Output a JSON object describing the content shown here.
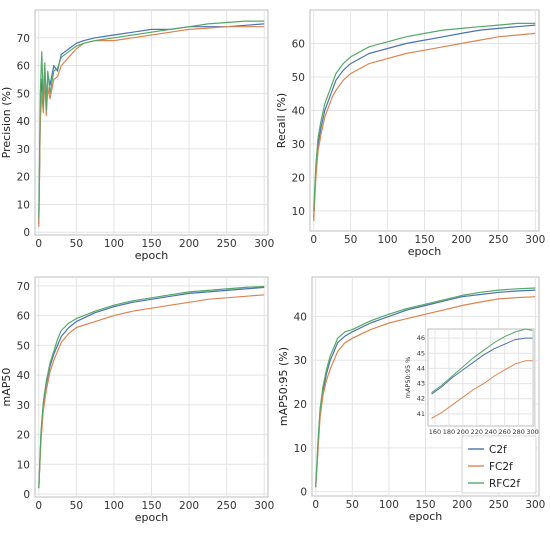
{
  "chart_data": [
    {
      "type": "line",
      "xlabel": "epoch",
      "ylabel": "Precision (%)",
      "xlim": [
        -5,
        305
      ],
      "ylim": [
        -1,
        80
      ],
      "xticks": [
        0,
        50,
        100,
        150,
        200,
        250,
        300
      ],
      "yticks": [
        0,
        10,
        20,
        30,
        40,
        50,
        60,
        70
      ],
      "grid": true,
      "series": [
        {
          "name": "C2f",
          "x": [
            0,
            2,
            4,
            6,
            8,
            10,
            12,
            15,
            20,
            25,
            30,
            40,
            50,
            60,
            75,
            100,
            125,
            150,
            175,
            200,
            225,
            250,
            275,
            300
          ],
          "y": [
            3,
            42,
            55,
            48,
            60,
            46,
            57,
            53,
            60,
            58,
            64,
            66,
            68,
            69,
            70,
            71,
            72,
            73,
            73,
            74,
            74,
            74,
            74.5,
            75
          ]
        },
        {
          "name": "FC2f",
          "x": [
            0,
            2,
            4,
            6,
            8,
            10,
            12,
            15,
            20,
            25,
            30,
            40,
            50,
            60,
            75,
            100,
            125,
            150,
            175,
            200,
            225,
            250,
            275,
            300
          ],
          "y": [
            2,
            40,
            50,
            43,
            55,
            42,
            52,
            48,
            55,
            56,
            60,
            63,
            66,
            68,
            69,
            69,
            70,
            71,
            72,
            73,
            73.5,
            74,
            74,
            74
          ]
        },
        {
          "name": "RFC2f",
          "x": [
            0,
            2,
            4,
            6,
            8,
            10,
            12,
            15,
            20,
            25,
            30,
            40,
            50,
            60,
            75,
            100,
            125,
            150,
            175,
            200,
            225,
            250,
            275,
            300
          ],
          "y": [
            5,
            50,
            65,
            45,
            61,
            44,
            58,
            50,
            58,
            59,
            63,
            65,
            67,
            68,
            69,
            70,
            71,
            72,
            73,
            74,
            75,
            75.5,
            76,
            76
          ]
        }
      ]
    },
    {
      "type": "line",
      "xlabel": "epoch",
      "ylabel": "Recall (%)",
      "xlim": [
        -5,
        305
      ],
      "ylim": [
        4,
        70
      ],
      "xticks": [
        0,
        50,
        100,
        150,
        200,
        250,
        300
      ],
      "yticks": [
        10,
        20,
        30,
        40,
        50,
        60
      ],
      "grid": true,
      "series": [
        {
          "name": "C2f",
          "x": [
            0,
            3,
            6,
            10,
            15,
            20,
            25,
            30,
            40,
            50,
            75,
            100,
            125,
            150,
            175,
            200,
            225,
            250,
            275,
            300
          ],
          "y": [
            8,
            22,
            30,
            35,
            40,
            43,
            46,
            49,
            52,
            54,
            57,
            58.5,
            60,
            61,
            62,
            63,
            64,
            64.5,
            65,
            65.5
          ]
        },
        {
          "name": "FC2f",
          "x": [
            0,
            3,
            6,
            10,
            15,
            20,
            25,
            30,
            40,
            50,
            75,
            100,
            125,
            150,
            175,
            200,
            225,
            250,
            275,
            300
          ],
          "y": [
            7,
            20,
            28,
            33,
            38,
            41,
            44,
            46,
            49,
            51,
            54,
            55.5,
            57,
            58,
            59,
            60,
            61,
            62,
            62.5,
            63
          ]
        },
        {
          "name": "RFC2f",
          "x": [
            0,
            3,
            6,
            10,
            15,
            20,
            25,
            30,
            40,
            50,
            75,
            100,
            125,
            150,
            175,
            200,
            225,
            250,
            275,
            300
          ],
          "y": [
            10,
            24,
            32,
            37,
            42,
            45,
            48,
            51,
            54,
            56,
            59,
            60.5,
            62,
            63,
            64,
            64.5,
            65,
            65.5,
            66,
            66
          ]
        }
      ]
    },
    {
      "type": "line",
      "xlabel": "epoch",
      "ylabel": "mAP50",
      "xlim": [
        -5,
        305
      ],
      "ylim": [
        -1,
        73
      ],
      "xticks": [
        0,
        50,
        100,
        150,
        200,
        250,
        300
      ],
      "yticks": [
        0,
        10,
        20,
        30,
        40,
        50,
        60,
        70
      ],
      "grid": true,
      "series": [
        {
          "name": "C2f",
          "x": [
            0,
            3,
            6,
            10,
            15,
            20,
            25,
            30,
            40,
            50,
            75,
            100,
            125,
            150,
            175,
            200,
            225,
            250,
            275,
            300
          ],
          "y": [
            2,
            20,
            30,
            37,
            43,
            47,
            50,
            53,
            56,
            58,
            61,
            63,
            64.5,
            65.5,
            66.5,
            67.5,
            68,
            68.5,
            69,
            69.5
          ]
        },
        {
          "name": "FC2f",
          "x": [
            0,
            3,
            6,
            10,
            15,
            20,
            25,
            30,
            40,
            50,
            75,
            100,
            125,
            150,
            175,
            200,
            225,
            250,
            275,
            300
          ],
          "y": [
            2,
            18,
            28,
            35,
            41,
            45,
            48,
            51,
            54,
            56,
            58,
            60,
            61.5,
            62.5,
            63.5,
            64.5,
            65.5,
            66,
            66.5,
            67
          ]
        },
        {
          "name": "RFC2f",
          "x": [
            0,
            3,
            6,
            10,
            15,
            20,
            25,
            30,
            40,
            50,
            75,
            100,
            125,
            150,
            175,
            200,
            225,
            250,
            275,
            300
          ],
          "y": [
            2,
            21,
            31,
            38,
            44,
            48,
            52,
            55,
            57.5,
            59,
            61.5,
            63.5,
            65,
            66,
            67,
            68,
            68.5,
            69,
            69.5,
            69.8
          ]
        }
      ]
    },
    {
      "type": "line",
      "xlabel": "epoch",
      "ylabel": "mAP50:95 (%)",
      "xlim": [
        -5,
        305
      ],
      "ylim": [
        -1,
        49
      ],
      "xticks": [
        0,
        50,
        100,
        150,
        200,
        250,
        300
      ],
      "yticks": [
        0,
        10,
        20,
        30,
        40
      ],
      "grid": true,
      "legend": "bottom-right",
      "series": [
        {
          "name": "C2f",
          "x": [
            0,
            3,
            6,
            10,
            15,
            20,
            25,
            30,
            40,
            50,
            75,
            100,
            125,
            150,
            175,
            200,
            225,
            250,
            275,
            300
          ],
          "y": [
            1,
            10,
            18,
            23,
            27,
            30,
            32,
            34,
            35.5,
            36.5,
            38.5,
            40,
            41.5,
            42.5,
            43.5,
            44.5,
            45,
            45.5,
            45.8,
            46
          ]
        },
        {
          "name": "FC2f",
          "x": [
            0,
            3,
            6,
            10,
            15,
            20,
            25,
            30,
            40,
            50,
            75,
            100,
            125,
            150,
            175,
            200,
            225,
            250,
            275,
            300
          ],
          "y": [
            1,
            9,
            17,
            22,
            25.5,
            28,
            30,
            32,
            34,
            35,
            37,
            38.5,
            39.5,
            40.5,
            41.5,
            42.5,
            43.3,
            44,
            44.3,
            44.5
          ]
        },
        {
          "name": "RFC2f",
          "x": [
            0,
            3,
            6,
            10,
            15,
            20,
            25,
            30,
            40,
            50,
            75,
            100,
            125,
            150,
            175,
            200,
            225,
            250,
            275,
            300
          ],
          "y": [
            1,
            11,
            19,
            24,
            28,
            31,
            33,
            35,
            36.5,
            37,
            39,
            40.5,
            41.8,
            42.8,
            43.8,
            44.8,
            45.5,
            46,
            46.3,
            46.5
          ]
        }
      ],
      "inset": {
        "type": "line",
        "xlabel": "epoch",
        "ylabel": "mAP50:95 %",
        "xlim": [
          150,
          302
        ],
        "ylim": [
          40.2,
          46.6
        ],
        "xticks": [
          160,
          180,
          200,
          220,
          240,
          260,
          280,
          300
        ],
        "yticks": [
          41,
          42,
          43,
          44,
          45,
          46
        ],
        "series": [
          {
            "name": "C2f",
            "x": [
              155,
              170,
              185,
              200,
              215,
              230,
              245,
              260,
              275,
              290,
              300
            ],
            "y": [
              42.3,
              42.8,
              43.4,
              43.9,
              44.4,
              44.9,
              45.3,
              45.6,
              45.9,
              46,
              46
            ]
          },
          {
            "name": "FC2f",
            "x": [
              155,
              170,
              185,
              200,
              215,
              230,
              245,
              260,
              275,
              290,
              300
            ],
            "y": [
              40.7,
              41.1,
              41.6,
              42.1,
              42.6,
              43.0,
              43.5,
              43.9,
              44.3,
              44.5,
              44.5
            ]
          },
          {
            "name": "RFC2f",
            "x": [
              155,
              170,
              185,
              200,
              215,
              230,
              245,
              260,
              275,
              290,
              300
            ],
            "y": [
              42.4,
              42.9,
              43.5,
              44.1,
              44.7,
              45.2,
              45.7,
              46.1,
              46.4,
              46.6,
              46.5
            ]
          }
        ]
      }
    }
  ],
  "colors": {
    "C2f": "#4c72b0",
    "FC2f": "#dd8452",
    "RFC2f": "#55a868"
  }
}
